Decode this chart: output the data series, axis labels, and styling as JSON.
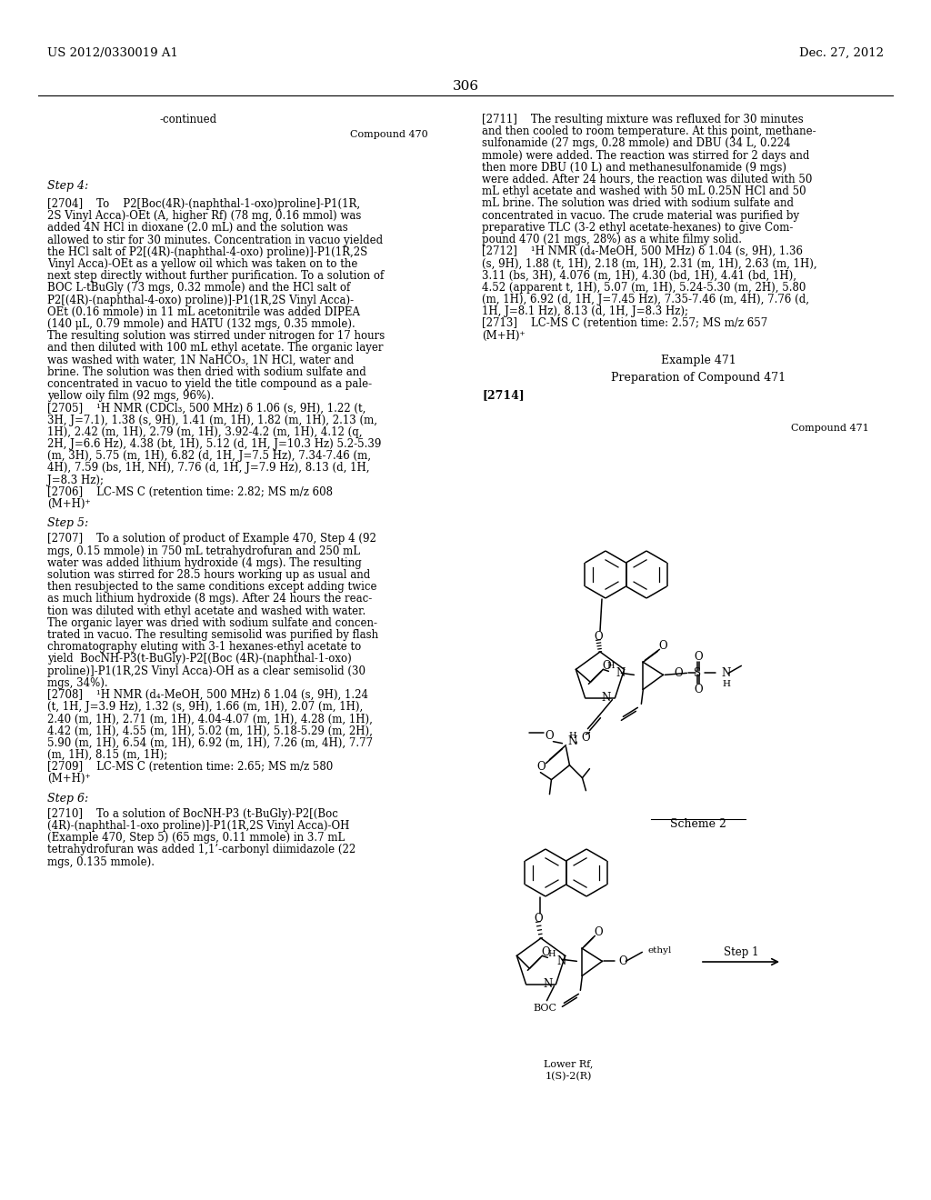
{
  "page_number": "306",
  "header_left": "US 2012/0330019 A1",
  "header_right": "Dec. 27, 2012",
  "background_color": "#ffffff"
}
